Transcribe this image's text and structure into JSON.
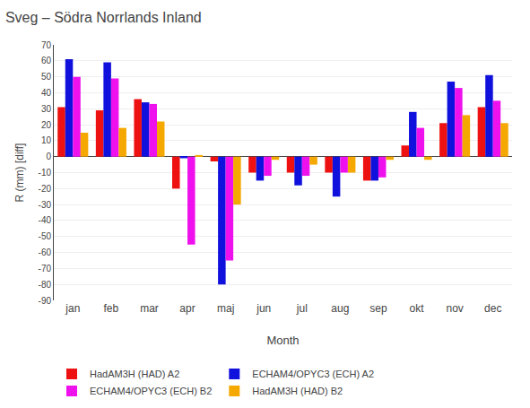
{
  "chart_data": {
    "type": "bar",
    "title": "Sveg – Södra Norrlands Inland",
    "categories": [
      "jan",
      "feb",
      "mar",
      "apr",
      "maj",
      "jun",
      "jul",
      "aug",
      "sep",
      "okt",
      "nov",
      "dec"
    ],
    "series": [
      {
        "name": "HadAM3H (HAD) A2",
        "color": "#ee1111",
        "values": [
          31,
          29,
          36,
          -20,
          -3,
          -10,
          -10,
          -10,
          -15,
          7,
          21,
          31
        ]
      },
      {
        "name": "ECHAM4/OPYC3 (ECH) A2",
        "color": "#1111dd",
        "values": [
          61,
          59,
          34,
          -1,
          -80,
          -15,
          -18,
          -25,
          -15,
          28,
          47,
          51
        ]
      },
      {
        "name": "ECHAM4/OPYC3 (ECH) B2",
        "color": "#ee11ee",
        "values": [
          50,
          49,
          33,
          -55,
          -65,
          -12,
          -12,
          -10,
          -13,
          18,
          43,
          35
        ]
      },
      {
        "name": "HadAM3H (HAD) B2",
        "color": "#f5a800",
        "values": [
          15,
          18,
          22,
          1,
          -30,
          -2,
          -5,
          -10,
          -2,
          -2,
          26,
          21
        ]
      }
    ],
    "xlabel": "Month",
    "ylabel": "R (mm) [diff]",
    "ylim": [
      -90,
      70
    ],
    "yticks": [
      -90,
      -80,
      -70,
      -60,
      -50,
      -40,
      -30,
      -20,
      -10,
      0,
      10,
      20,
      30,
      40,
      50,
      60,
      70
    ],
    "grid": true,
    "legend": "bottom"
  }
}
